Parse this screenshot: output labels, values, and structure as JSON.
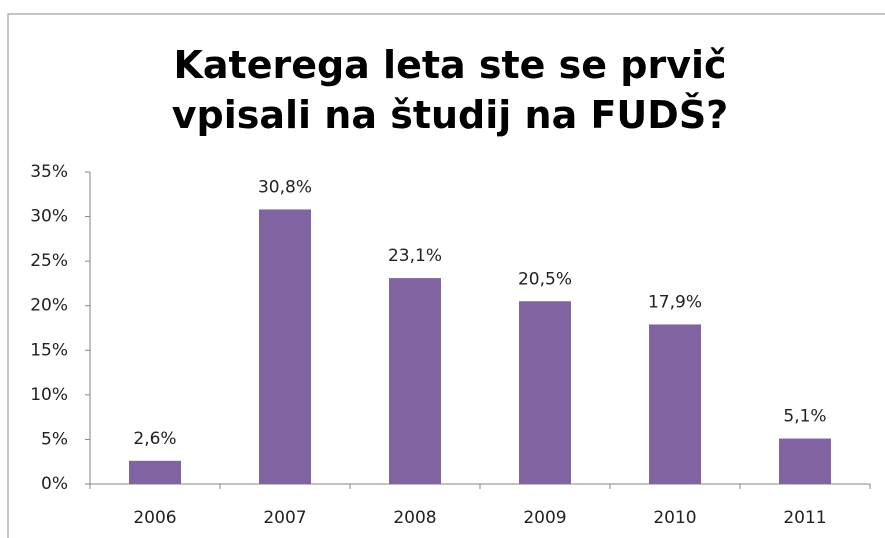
{
  "chart_data": {
    "type": "bar",
    "title": "Katerega leta ste se prvič vpisali na študij na FUDŠ?",
    "categories": [
      "2006",
      "2007",
      "2008",
      "2009",
      "2010",
      "2011"
    ],
    "values": [
      2.6,
      30.8,
      23.1,
      20.5,
      17.9,
      5.1
    ],
    "value_labels": [
      "2,6%",
      "30,8%",
      "23,1%",
      "20,5%",
      "17,9%",
      "5,1%"
    ],
    "color": "#8064a2",
    "ylim": [
      0,
      35
    ],
    "yticks": [
      {
        "value": 0,
        "label": "0%"
      },
      {
        "value": 5,
        "label": "5%"
      },
      {
        "value": 10,
        "label": "10%"
      },
      {
        "value": 15,
        "label": "15%"
      },
      {
        "value": 20,
        "label": "20%"
      },
      {
        "value": 25,
        "label": "25%"
      },
      {
        "value": 30,
        "label": "30%"
      },
      {
        "value": 35,
        "label": "35%"
      }
    ],
    "grid": false
  }
}
